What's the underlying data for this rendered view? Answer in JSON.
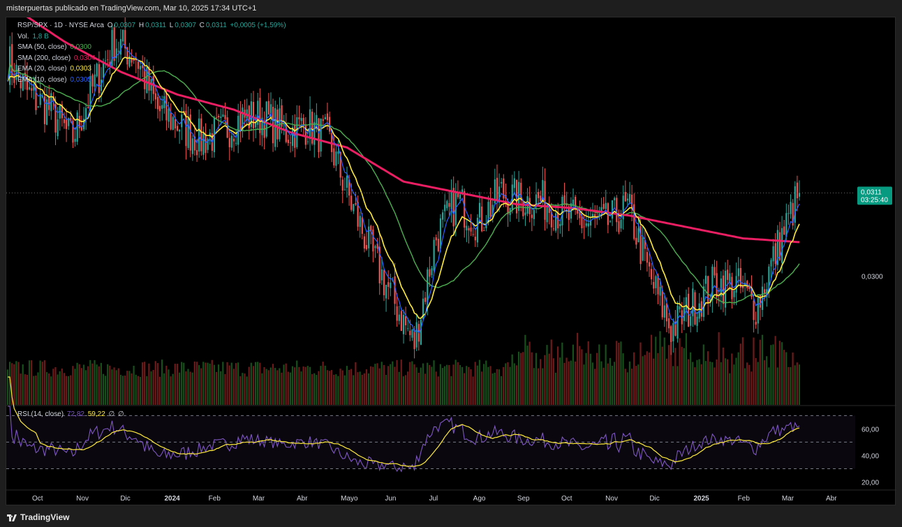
{
  "header": {
    "publisher_line": "misterpuertas publicado en TradingView.com, Mar 10, 2025 17:34 UTC+1"
  },
  "legend": {
    "symbol": "RSP/SPX · 1D · NYSE Arca",
    "ohlc": {
      "o_label": "O",
      "o": "0,0307",
      "h_label": "H",
      "h": "0,0311",
      "l_label": "L",
      "l": "0,0307",
      "c_label": "C",
      "c": "0,0311",
      "change": "+0,0005 (+1,59%)"
    },
    "vol_label": "Vol.",
    "vol_value": "1,8 B",
    "indicators": [
      {
        "label": "SMA (50, close)",
        "value": "0,0300",
        "color": "#4caf50"
      },
      {
        "label": "SMA (200, close)",
        "value": "0,0304",
        "color": "#e91e63"
      },
      {
        "label": "EMA (20, close)",
        "value": "0,0303",
        "color": "#ffeb3b"
      },
      {
        "label": "EMA (10, close)",
        "value": "0,0305",
        "color": "#2962ff"
      }
    ]
  },
  "rsi": {
    "label": "RSI (14, close)",
    "value": "72,82",
    "ma_value": "59,22",
    "extra1": "∅",
    "extra2": "∅",
    "line_color": "#7e57c2",
    "ma_color": "#ffeb3b"
  },
  "price_axis": {
    "ticks": [
      {
        "value": 0.03,
        "label": "0,0300"
      }
    ],
    "last_price": "0,0311",
    "countdown": "03:25:40",
    "last_color": "#089981"
  },
  "rsi_axis": {
    "ticks": [
      {
        "value": 60,
        "label": "60,00"
      },
      {
        "value": 40,
        "label": "40,00"
      },
      {
        "value": 20,
        "label": "20,00"
      }
    ]
  },
  "time_axis": [
    "Oct",
    "Nov",
    "Dic",
    "2024",
    "Feb",
    "Mar",
    "Abr",
    "Mayo",
    "Jun",
    "Jul",
    "Ago",
    "Sep",
    "Oct",
    "Nov",
    "Dic",
    "2025",
    "Feb",
    "Mar",
    "Abr"
  ],
  "footer": {
    "brand": "TradingView"
  },
  "chart_data": {
    "type": "candlestick",
    "symbol": "RSP/SPX",
    "interval": "1D",
    "y_range_price": [
      0.0283,
      0.0334
    ],
    "rsi_range": [
      15,
      77
    ],
    "rsi_levels": [
      70,
      50,
      30
    ],
    "up_color": "#26a69a",
    "down_color": "#ef5350",
    "close_anchors": [
      {
        "x": "Oct",
        "v": 0.03285
      },
      {
        "x": "mid Oct",
        "v": 0.0324
      },
      {
        "x": "Nov",
        "v": 0.0322
      },
      {
        "x": "mid Nov",
        "v": 0.0318
      },
      {
        "x": "Dic",
        "v": 0.0325
      },
      {
        "x": "mid Dic",
        "v": 0.0331
      },
      {
        "x": "2024",
        "v": 0.0329
      },
      {
        "x": "mid Ene",
        "v": 0.0322
      },
      {
        "x": "Feb",
        "v": 0.032
      },
      {
        "x": "mid Feb",
        "v": 0.0318
      },
      {
        "x": "Mar",
        "v": 0.0319
      },
      {
        "x": "mid Mar",
        "v": 0.0321
      },
      {
        "x": "Abr",
        "v": 0.0321
      },
      {
        "x": "mid Abr",
        "v": 0.0319
      },
      {
        "x": "Mayo",
        "v": 0.032
      },
      {
        "x": "mid Mayo",
        "v": 0.0318
      },
      {
        "x": "Jun",
        "v": 0.031
      },
      {
        "x": "mid Jun",
        "v": 0.0303
      },
      {
        "x": "Jul",
        "v": 0.0297
      },
      {
        "x": "mid Jul",
        "v": 0.0291
      },
      {
        "x": "late Jul",
        "v": 0.0305
      },
      {
        "x": "Ago",
        "v": 0.031
      },
      {
        "x": "mid Ago",
        "v": 0.0307
      },
      {
        "x": "Sep",
        "v": 0.0311
      },
      {
        "x": "mid Sep",
        "v": 0.031
      },
      {
        "x": "Oct",
        "v": 0.031
      },
      {
        "x": "mid Oct",
        "v": 0.0308
      },
      {
        "x": "Nov",
        "v": 0.0307
      },
      {
        "x": "mid Nov",
        "v": 0.0307
      },
      {
        "x": "Dic",
        "v": 0.0309
      },
      {
        "x": "mid Dic",
        "v": 0.03
      },
      {
        "x": "late Dic",
        "v": 0.0293
      },
      {
        "x": "2025",
        "v": 0.0296
      },
      {
        "x": "mid Ene",
        "v": 0.0299
      },
      {
        "x": "Feb",
        "v": 0.0299
      },
      {
        "x": "mid Feb",
        "v": 0.0296
      },
      {
        "x": "Mar",
        "v": 0.0304
      },
      {
        "x": "Mar 10",
        "v": 0.0311
      }
    ],
    "sma200_anchors": [
      0.0336,
      0.0331,
      0.0327,
      0.0324,
      0.0322,
      0.0319,
      0.0317,
      0.03125,
      0.0311,
      0.03095,
      0.0309,
      0.0308,
      0.03065,
      0.0305,
      0.03045
    ]
  }
}
